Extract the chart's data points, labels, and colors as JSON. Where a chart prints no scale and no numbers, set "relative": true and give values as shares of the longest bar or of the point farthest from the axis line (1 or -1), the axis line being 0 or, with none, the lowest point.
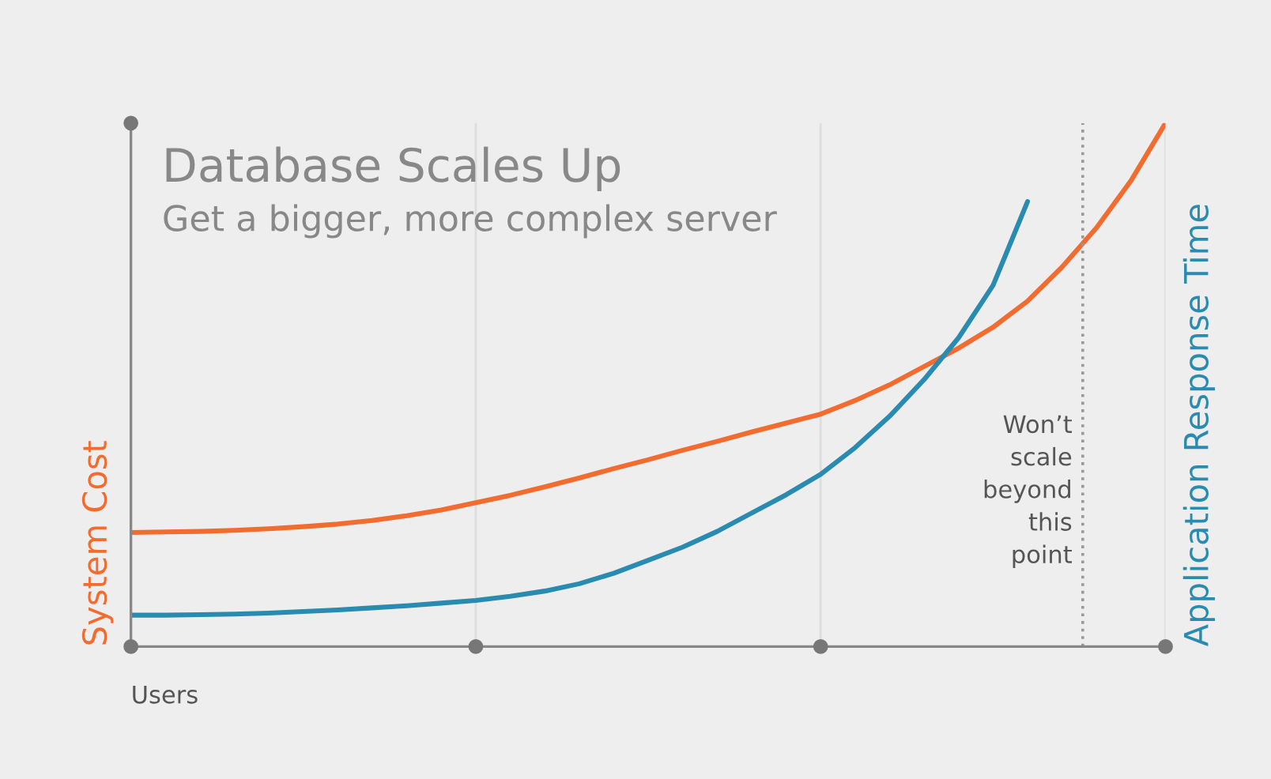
{
  "chart_data": {
    "type": "line",
    "title": "Database Scales Up",
    "subtitle": "Get a bigger, more complex server",
    "xlabel": "Users",
    "relative": true,
    "categories": [
      null,
      null,
      null,
      null,
      null,
      null,
      null,
      null,
      null,
      null,
      null,
      null,
      null,
      null,
      null,
      null,
      null,
      null,
      null,
      null,
      null,
      null,
      null,
      null,
      null,
      null,
      null,
      null,
      null,
      null,
      null
    ],
    "grid": "x",
    "legend": false,
    "marker": "none",
    "line_style": "solid",
    "series": [
      {
        "name": "System Cost",
        "color": "#f26b2f",
        "values": [
          0.218,
          0.219,
          0.22,
          0.222,
          0.225,
          0.229,
          0.234,
          0.241,
          0.25,
          0.261,
          0.275,
          0.289,
          0.305,
          0.322,
          0.34,
          0.357,
          0.375,
          0.392,
          0.41,
          0.427,
          0.444,
          0.47,
          0.5,
          0.535,
          0.57,
          0.61,
          0.66,
          0.725,
          0.8,
          0.89,
          1.0
        ]
      },
      {
        "name": "Application Response Time",
        "color": "#2a8bb0",
        "values": [
          0.06,
          0.06,
          0.061,
          0.062,
          0.064,
          0.067,
          0.07,
          0.074,
          0.078,
          0.083,
          0.088,
          0.096,
          0.106,
          0.12,
          0.14,
          0.165,
          0.19,
          0.22,
          0.255,
          0.29,
          0.329,
          0.38,
          0.44,
          0.51,
          0.59,
          0.69,
          0.85,
          null,
          null,
          null,
          null
        ]
      }
    ],
    "annotations": [
      "Won’t\nscale\nbeyond\nthis\npoint"
    ]
  }
}
